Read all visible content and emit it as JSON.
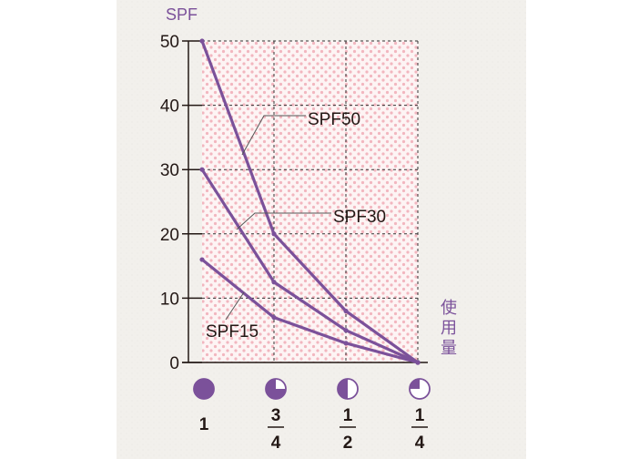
{
  "chart_data": {
    "type": "line",
    "ylabel": "SPF",
    "xlabel": "使用量",
    "ylim": [
      0,
      50
    ],
    "yticks": [
      "0",
      "10",
      "20",
      "30",
      "40",
      "50"
    ],
    "categories": [
      {
        "numerator": "1",
        "denominator": "",
        "fill": 1.0
      },
      {
        "numerator": "3",
        "denominator": "4",
        "fill": 0.75
      },
      {
        "numerator": "1",
        "denominator": "2",
        "fill": 0.5
      },
      {
        "numerator": "1",
        "denominator": "4",
        "fill": 0.25
      }
    ],
    "x_fraction_of_full_amount": [
      1.0,
      0.75,
      0.5,
      0.25
    ],
    "grid": true,
    "series": [
      {
        "name": "SPF50",
        "values": [
          50,
          20,
          8,
          0
        ]
      },
      {
        "name": "SPF30",
        "values": [
          30,
          12.5,
          5,
          0
        ]
      },
      {
        "name": "SPF15",
        "values": [
          16,
          7,
          3,
          0
        ]
      }
    ]
  },
  "colors": {
    "series_line": "#7b519a",
    "accent_text": "#7b519a",
    "plot_dots": "#f2b6bf",
    "plot_bg": "#fdf4f4",
    "paper": "#f2f0ec",
    "axis": "#231815"
  }
}
